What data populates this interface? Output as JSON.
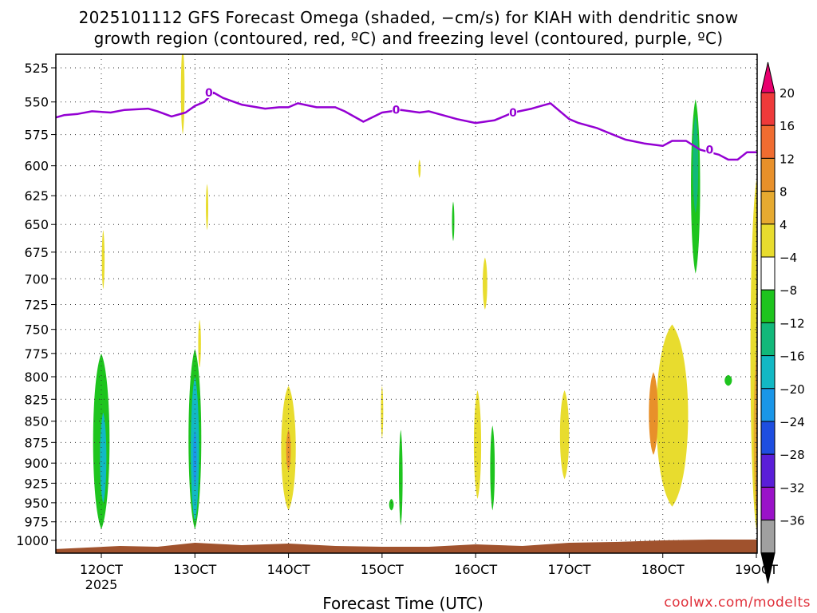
{
  "title_line1": "2025101112 GFS Forecast Omega (shaded, −cm/s) for KIAH with dendritic snow",
  "title_line2": "growth region (contoured, red, ºC) and freezing level (contoured, purple, ºC)",
  "xlabel": "Forecast Time (UTC)",
  "credit": "coolwx.com/modelts",
  "chart_data": {
    "type": "heatmap",
    "title": "2025101112 GFS Forecast Omega (shaded, −cm/s) for KIAH with dendritic snow growth region (contoured, red, ºC) and freezing level (contoured, purple, ºC)",
    "xlabel": "Forecast Time (UTC)",
    "ylabel": "Pressure (hPa)",
    "year_label": "2025",
    "x_ticks": [
      {
        "label": "12OCT",
        "value": 12
      },
      {
        "label": "13OCT",
        "value": 13
      },
      {
        "label": "14OCT",
        "value": 14
      },
      {
        "label": "15OCT",
        "value": 15
      },
      {
        "label": "16OCT",
        "value": 16
      },
      {
        "label": "17OCT",
        "value": 17
      },
      {
        "label": "18OCT",
        "value": 18
      },
      {
        "label": "19OCT",
        "value": 19
      }
    ],
    "xlim": [
      11.5,
      19.0
    ],
    "y_ticks": [
      525,
      550,
      575,
      600,
      625,
      650,
      675,
      700,
      725,
      750,
      775,
      800,
      825,
      850,
      875,
      900,
      925,
      950,
      975,
      1000
    ],
    "ylim": [
      510,
      1015
    ],
    "colorbar": {
      "labels": [
        "20",
        "16",
        "12",
        "8",
        "4",
        "−4",
        "−8",
        "−12",
        "−16",
        "−20",
        "−24",
        "−28",
        "−32",
        "−36"
      ],
      "colors_top_to_bottom": [
        "#e8006e",
        "#ee3a3a",
        "#f06c30",
        "#e8902a",
        "#e6aa30",
        "#e8dc2e",
        "#ffffff",
        "#1ec41e",
        "#12b87a",
        "#12b8c4",
        "#1a96e8",
        "#1e4ee0",
        "#5a1ed8",
        "#9a12c8",
        "#a0a0a0",
        "#000000"
      ]
    },
    "freezing_level": {
      "label": "0",
      "color": "#9400d3",
      "points": [
        [
          11.5,
          562
        ],
        [
          11.6,
          560
        ],
        [
          11.75,
          559
        ],
        [
          11.9,
          557
        ],
        [
          12.1,
          558
        ],
        [
          12.25,
          556
        ],
        [
          12.5,
          555
        ],
        [
          12.6,
          557
        ],
        [
          12.75,
          561
        ],
        [
          12.9,
          558
        ],
        [
          13.0,
          553
        ],
        [
          13.1,
          550
        ],
        [
          13.2,
          543
        ],
        [
          13.3,
          547
        ],
        [
          13.5,
          552
        ],
        [
          13.75,
          555
        ],
        [
          13.9,
          554
        ],
        [
          14.0,
          554
        ],
        [
          14.1,
          551
        ],
        [
          14.3,
          554
        ],
        [
          14.5,
          554
        ],
        [
          14.6,
          557
        ],
        [
          14.8,
          565
        ],
        [
          15.0,
          558
        ],
        [
          15.2,
          556
        ],
        [
          15.4,
          558
        ],
        [
          15.5,
          557
        ],
        [
          15.7,
          561
        ],
        [
          15.8,
          563
        ],
        [
          16.0,
          566
        ],
        [
          16.2,
          564
        ],
        [
          16.4,
          558
        ],
        [
          16.6,
          555
        ],
        [
          16.7,
          553
        ],
        [
          16.8,
          551
        ],
        [
          17.0,
          563
        ],
        [
          17.1,
          566
        ],
        [
          17.3,
          570
        ],
        [
          17.5,
          576
        ],
        [
          17.6,
          579
        ],
        [
          17.8,
          582
        ],
        [
          18.0,
          584
        ],
        [
          18.1,
          580
        ],
        [
          18.25,
          580
        ],
        [
          18.4,
          587
        ],
        [
          18.6,
          591
        ],
        [
          18.7,
          595
        ],
        [
          18.8,
          595
        ],
        [
          18.9,
          589
        ],
        [
          19.05,
          589
        ],
        [
          19.2,
          595
        ],
        [
          19.25,
          594
        ],
        [
          19.3,
          592
        ],
        [
          19.5,
          591
        ],
        [
          19.6,
          587
        ],
        [
          19.75,
          588
        ],
        [
          20.0,
          588
        ],
        [
          20.1,
          587
        ],
        [
          20.2,
          584
        ],
        [
          20.3,
          579
        ],
        [
          20.5,
          577
        ]
      ]
    },
    "omega_blobs": [
      {
        "x": 12.0,
        "p0": 775,
        "p1": 985,
        "width": 0.18,
        "band": "-4"
      },
      {
        "x": 12.02,
        "p0": 840,
        "p1": 950,
        "width": 0.07,
        "band": "-12"
      },
      {
        "x": 13.0,
        "p0": 770,
        "p1": 985,
        "width": 0.14,
        "band": "-4"
      },
      {
        "x": 13.0,
        "p0": 800,
        "p1": 975,
        "width": 0.09,
        "band": "-12"
      },
      {
        "x": 13.0,
        "p0": 860,
        "p1": 930,
        "width": 0.04,
        "band": "-16"
      },
      {
        "x": 15.2,
        "p0": 860,
        "p1": 980,
        "width": 0.04,
        "band": "-4"
      },
      {
        "x": 15.1,
        "p0": 945,
        "p1": 960,
        "width": 0.05,
        "band": "-4"
      },
      {
        "x": 16.18,
        "p0": 855,
        "p1": 960,
        "width": 0.05,
        "band": "-4"
      },
      {
        "x": 15.76,
        "p0": 630,
        "p1": 665,
        "width": 0.02,
        "band": "-4"
      },
      {
        "x": 18.35,
        "p0": 548,
        "p1": 695,
        "width": 0.1,
        "band": "-4"
      },
      {
        "x": 18.35,
        "p0": 560,
        "p1": 640,
        "width": 0.06,
        "band": "-8"
      },
      {
        "x": 18.7,
        "p0": 798,
        "p1": 810,
        "width": 0.08,
        "band": "-4"
      },
      {
        "x": 12.02,
        "p0": 655,
        "p1": 710,
        "width": 0.03,
        "band": "4"
      },
      {
        "x": 12.87,
        "p0": 510,
        "p1": 575,
        "width": 0.04,
        "band": "4"
      },
      {
        "x": 13.13,
        "p0": 615,
        "p1": 655,
        "width": 0.02,
        "band": "4"
      },
      {
        "x": 13.05,
        "p0": 740,
        "p1": 790,
        "width": 0.03,
        "band": "4"
      },
      {
        "x": 14.0,
        "p0": 810,
        "p1": 960,
        "width": 0.16,
        "band": "4"
      },
      {
        "x": 14.0,
        "p0": 860,
        "p1": 910,
        "width": 0.05,
        "band": "12"
      },
      {
        "x": 15.0,
        "p0": 810,
        "p1": 870,
        "width": 0.02,
        "band": "4"
      },
      {
        "x": 15.4,
        "p0": 595,
        "p1": 610,
        "width": 0.02,
        "band": "4"
      },
      {
        "x": 16.02,
        "p0": 815,
        "p1": 945,
        "width": 0.08,
        "band": "4"
      },
      {
        "x": 16.1,
        "p0": 680,
        "p1": 730,
        "width": 0.05,
        "band": "4"
      },
      {
        "x": 16.95,
        "p0": 815,
        "p1": 920,
        "width": 0.1,
        "band": "4"
      },
      {
        "x": 18.1,
        "p0": 745,
        "p1": 955,
        "width": 0.35,
        "band": "4"
      },
      {
        "x": 17.9,
        "p0": 795,
        "p1": 890,
        "width": 0.1,
        "band": "12"
      },
      {
        "x": 19.0,
        "p0": 612,
        "p1": 985,
        "width": 0.13,
        "band": "4"
      },
      {
        "x": 19.02,
        "p0": 760,
        "p1": 980,
        "width": 0.1,
        "band": "8"
      },
      {
        "x": 19.03,
        "p0": 790,
        "p1": 940,
        "width": 0.06,
        "band": "12"
      },
      {
        "x": 19.04,
        "p0": 820,
        "p1": 900,
        "width": 0.05,
        "band": "16"
      }
    ],
    "terrain_color": "#a0522d"
  }
}
